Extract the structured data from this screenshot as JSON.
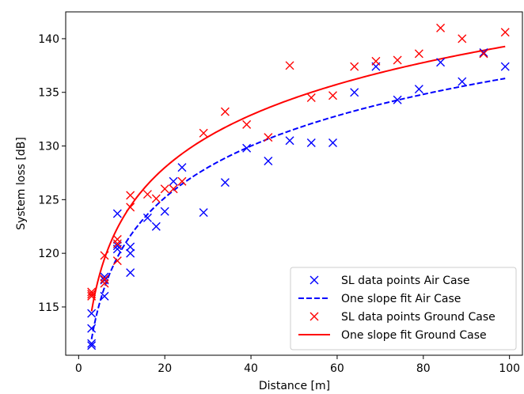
{
  "chart_data": {
    "type": "scatter",
    "xlabel": "Distance [m]",
    "ylabel": "System loss [dB]",
    "xlim": [
      -3,
      103
    ],
    "ylim": [
      110.5,
      142.5
    ],
    "xticks": [
      0,
      20,
      40,
      60,
      80,
      100
    ],
    "yticks": [
      115,
      120,
      125,
      130,
      135,
      140
    ],
    "grid": false,
    "legend_position": "lower-right",
    "series": [
      {
        "name": "SL data points Air Case",
        "kind": "points",
        "marker": "x",
        "color": "#0000ff",
        "points": [
          [
            3,
            114.4
          ],
          [
            3,
            113.0
          ],
          [
            3,
            111.6
          ],
          [
            3,
            111.4
          ],
          [
            6,
            117.8
          ],
          [
            6,
            117.5
          ],
          [
            6,
            116.0
          ],
          [
            9,
            123.7
          ],
          [
            9,
            120.7
          ],
          [
            9,
            120.4
          ],
          [
            12,
            120.6
          ],
          [
            12,
            120.0
          ],
          [
            12,
            118.2
          ],
          [
            16,
            123.3
          ],
          [
            18,
            122.5
          ],
          [
            20,
            123.9
          ],
          [
            22,
            126.7
          ],
          [
            24,
            128.0
          ],
          [
            29,
            123.8
          ],
          [
            34,
            126.6
          ],
          [
            39,
            129.8
          ],
          [
            44,
            128.6
          ],
          [
            49,
            130.5
          ],
          [
            54,
            130.3
          ],
          [
            59,
            130.3
          ],
          [
            64,
            135.0
          ],
          [
            69,
            137.4
          ],
          [
            74,
            134.3
          ],
          [
            79,
            135.3
          ],
          [
            84,
            137.8
          ],
          [
            89,
            136.0
          ],
          [
            94,
            138.7
          ],
          [
            99,
            137.4
          ]
        ]
      },
      {
        "name": "One slope fit Air Case",
        "kind": "fit",
        "style": "dashed",
        "color": "#0000ff",
        "model": {
          "x_ref": 3,
          "y_ref": 112.0,
          "slope_per_decade": 16.0,
          "x_range": [
            3,
            99
          ]
        }
      },
      {
        "name": "SL data points Ground Case",
        "kind": "points",
        "marker": "x",
        "color": "#ff0000",
        "points": [
          [
            3,
            116.4
          ],
          [
            3,
            116.2
          ],
          [
            3,
            116.0
          ],
          [
            6,
            119.8
          ],
          [
            6,
            117.6
          ],
          [
            6,
            117.2
          ],
          [
            9,
            121.3
          ],
          [
            9,
            120.9
          ],
          [
            9,
            119.3
          ],
          [
            12,
            125.4
          ],
          [
            12,
            124.3
          ],
          [
            16,
            125.5
          ],
          [
            18,
            125.1
          ],
          [
            20,
            126.0
          ],
          [
            22,
            126.0
          ],
          [
            24,
            126.7
          ],
          [
            29,
            131.2
          ],
          [
            34,
            133.2
          ],
          [
            39,
            132.0
          ],
          [
            44,
            130.8
          ],
          [
            49,
            137.5
          ],
          [
            54,
            134.5
          ],
          [
            59,
            134.7
          ],
          [
            64,
            137.4
          ],
          [
            69,
            137.9
          ],
          [
            74,
            138.0
          ],
          [
            79,
            138.6
          ],
          [
            84,
            141.0
          ],
          [
            89,
            140.0
          ],
          [
            94,
            138.6
          ],
          [
            99,
            140.6
          ]
        ]
      },
      {
        "name": "One slope fit Ground Case",
        "kind": "fit",
        "style": "solid",
        "color": "#ff0000",
        "model": {
          "x_ref": 3,
          "y_ref": 114.6,
          "slope_per_decade": 16.25,
          "x_range": [
            3,
            99
          ]
        }
      }
    ]
  }
}
